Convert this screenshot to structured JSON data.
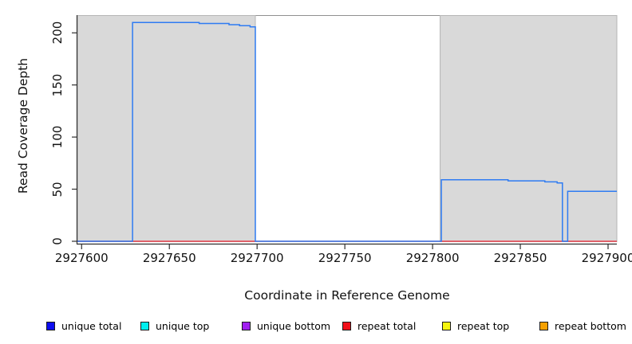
{
  "chart_data": {
    "type": "line",
    "title": "",
    "xlabel": "Coordinate in Reference Genome",
    "ylabel": "Read Coverage Depth",
    "xlim": [
      2927597.6,
      2927905
    ],
    "ylim": [
      -2.3,
      217
    ],
    "grid": false,
    "x_ticks": {
      "values": [
        2927600,
        2927650,
        2927700,
        2927750,
        2927800,
        2927850,
        2927900
      ],
      "labels": [
        "2927600",
        "2927650",
        "2927700",
        "2927750",
        "2927800",
        "2927850",
        "2927900"
      ]
    },
    "y_ticks": {
      "values": [
        0,
        50,
        100,
        150,
        200
      ],
      "labels": [
        "0",
        "50",
        "100",
        "150",
        "200"
      ]
    },
    "shaded_regions": [
      {
        "x1": 2927597.6,
        "x2": 2927699,
        "fill": "#d9d9d9",
        "stroke": "#b5b5b5"
      },
      {
        "x1": 2927804.3,
        "x2": 2927905,
        "fill": "#d9d9d9",
        "stroke": "#b5b5b5"
      }
    ],
    "series": [
      {
        "name": "repeat total",
        "color": "#e8404c",
        "points": [
          [
            2927597.6,
            0
          ],
          [
            2927905,
            0
          ]
        ]
      },
      {
        "name": "unique total",
        "color": "#2e7bf2",
        "points": [
          [
            2927597.6,
            0
          ],
          [
            2927629,
            0
          ],
          [
            2927629,
            210
          ],
          [
            2927667,
            210
          ],
          [
            2927667,
            209
          ],
          [
            2927684,
            209
          ],
          [
            2927684,
            207.8
          ],
          [
            2927690,
            207.8
          ],
          [
            2927690,
            206.8
          ],
          [
            2927696,
            206.8
          ],
          [
            2927696,
            205.8
          ],
          [
            2927699,
            205.8
          ],
          [
            2927699,
            0
          ],
          [
            2927805,
            0
          ],
          [
            2927805,
            59
          ],
          [
            2927843,
            59
          ],
          [
            2927843,
            58
          ],
          [
            2927864,
            58
          ],
          [
            2927864,
            57
          ],
          [
            2927871,
            57
          ],
          [
            2927871,
            56
          ],
          [
            2927874,
            56
          ],
          [
            2927874,
            0
          ],
          [
            2927877,
            0
          ],
          [
            2927877,
            48
          ],
          [
            2927905,
            48
          ]
        ]
      }
    ],
    "legend_position": "bottom"
  },
  "legend": {
    "items": [
      {
        "label": "unique total",
        "color": "#0d0df0"
      },
      {
        "label": "unique top",
        "color": "#00eeee"
      },
      {
        "label": "unique bottom",
        "color": "#a020f0"
      },
      {
        "label": "repeat total",
        "color": "#f2101a"
      },
      {
        "label": "repeat top",
        "color": "#f5f510"
      },
      {
        "label": "repeat bottom",
        "color": "#f5a000"
      }
    ]
  }
}
